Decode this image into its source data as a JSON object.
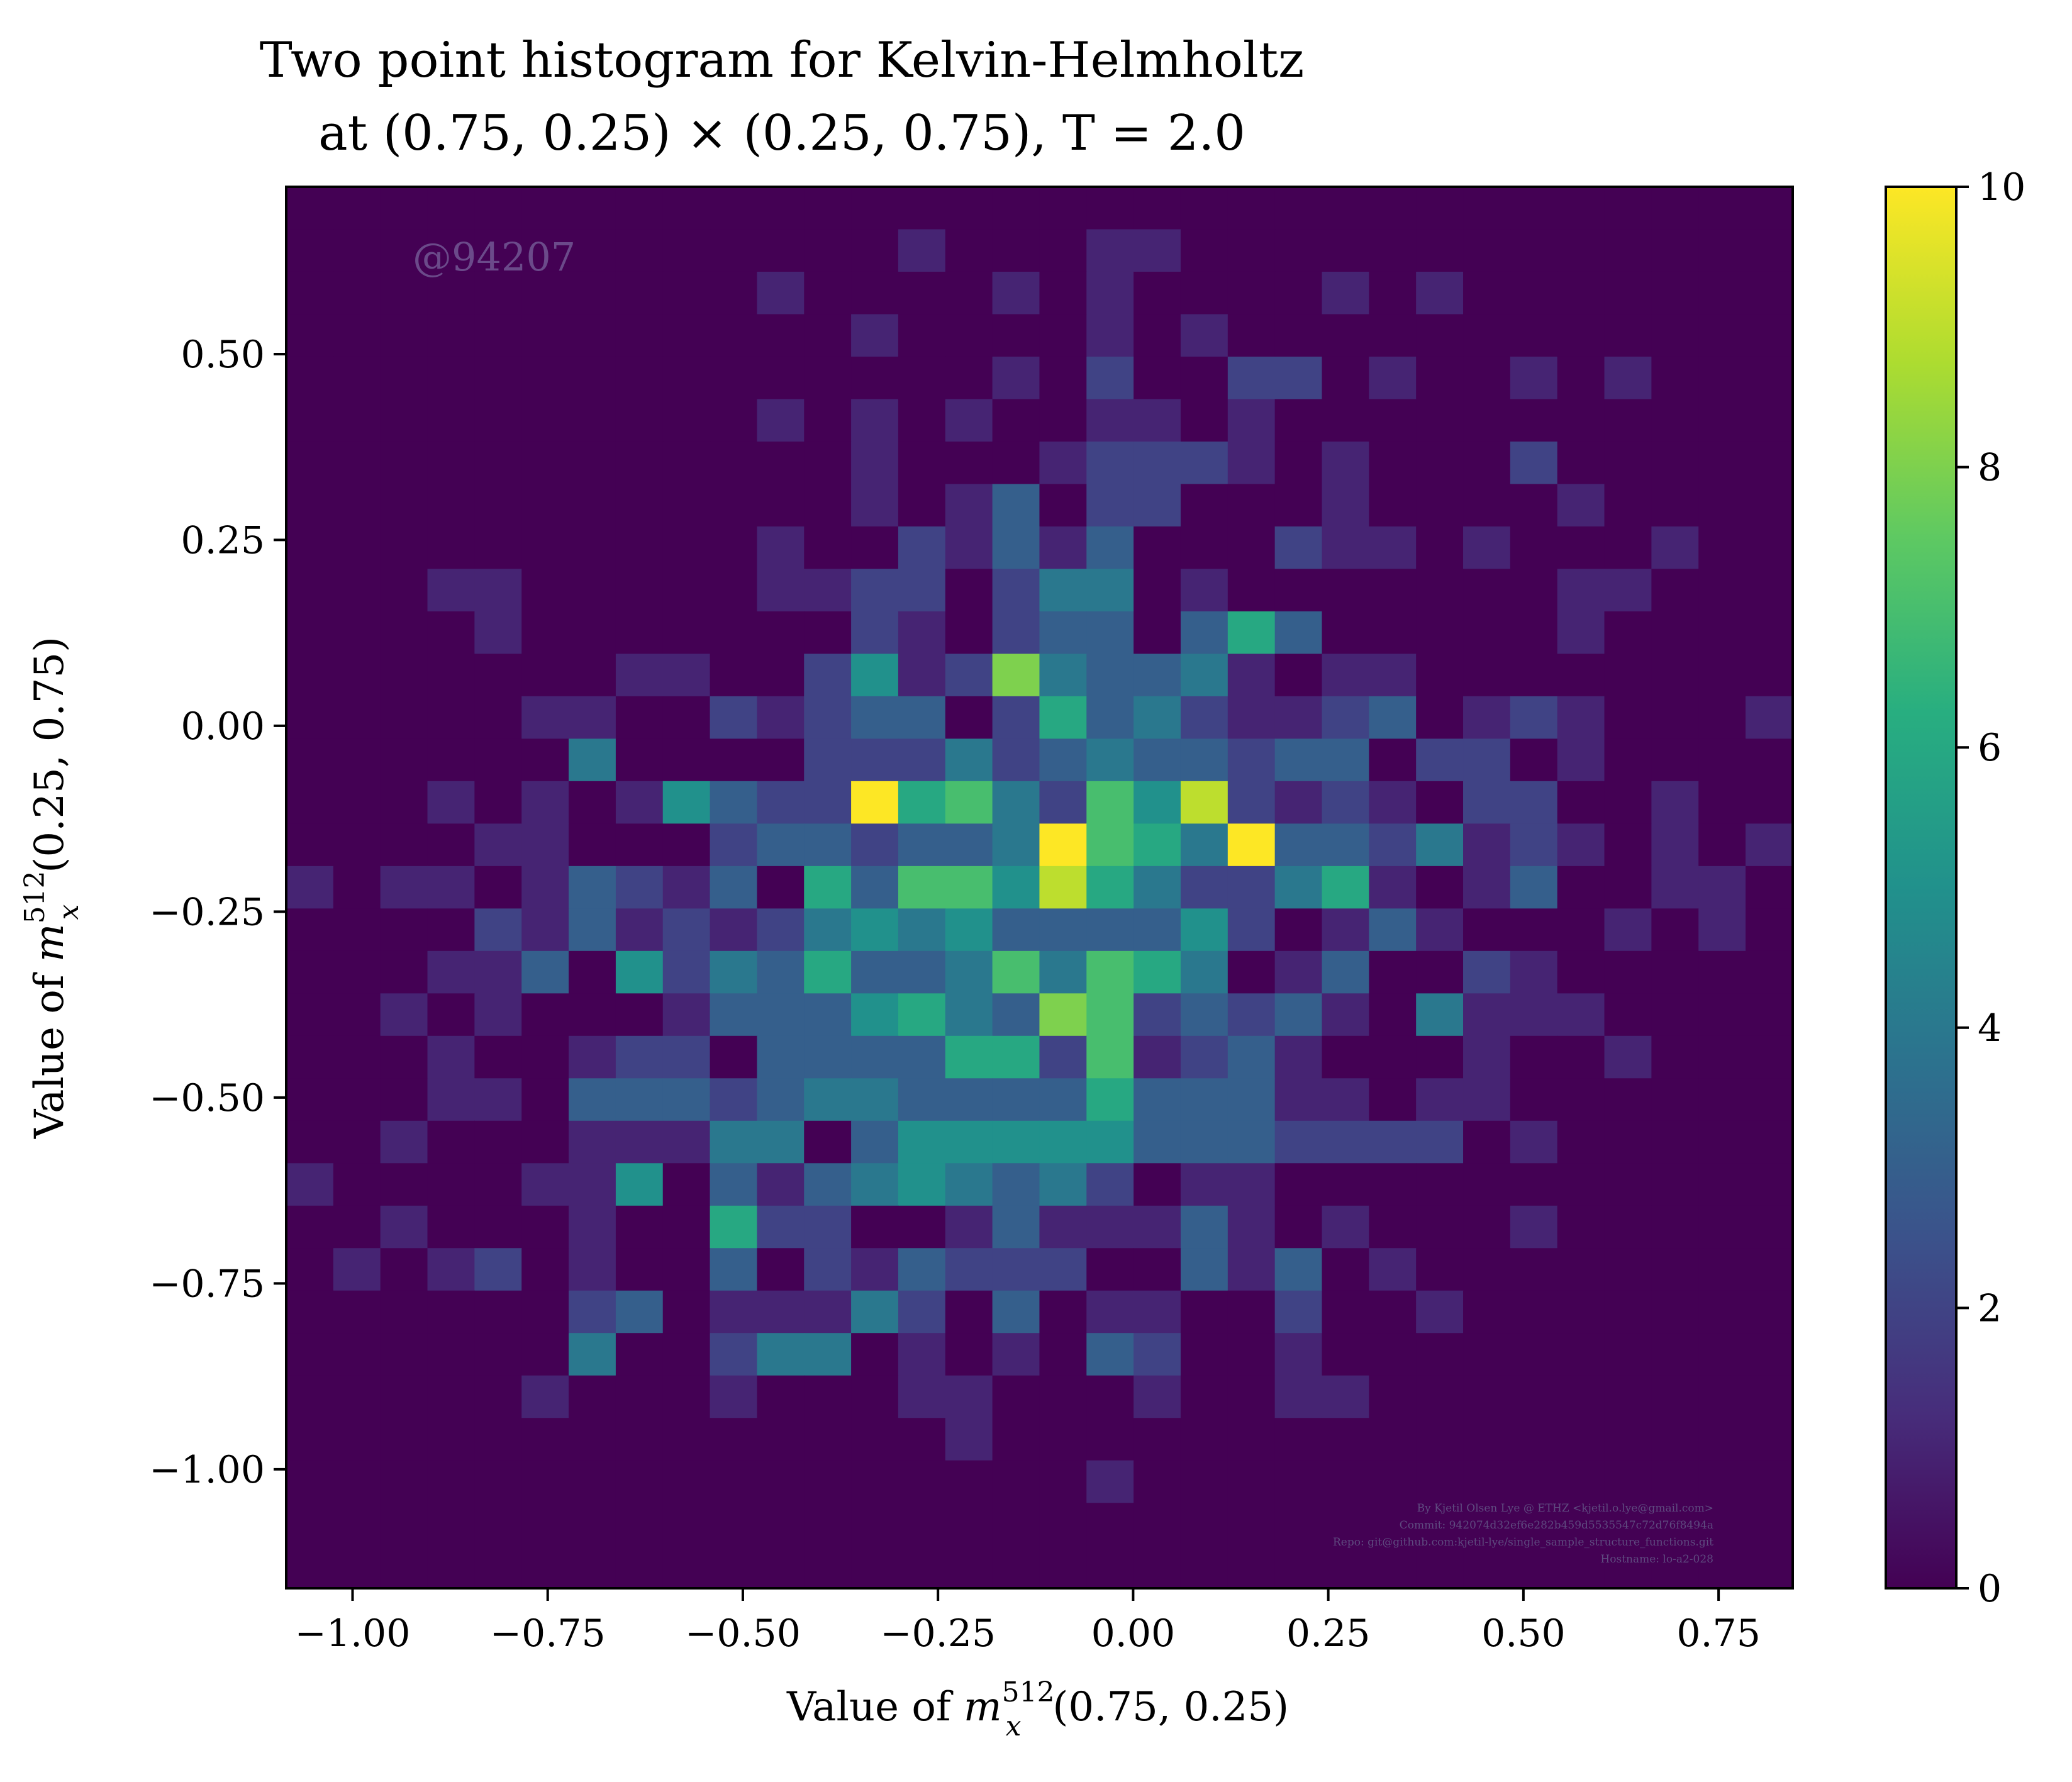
{
  "chart_data": {
    "type": "heatmap",
    "title_line1": "Two point histogram for Kelvin-Helmholtz",
    "title_line2": "at (0.75, 0.25) × (0.25, 0.75), T = 2.0",
    "xlabel": "Value of m_x^512(0.75, 0.25)",
    "ylabel": "Value of m_x^512(0.25, 0.75)",
    "xlabel_parts": {
      "pre": "Value of ",
      "var": "m",
      "sup": "512",
      "sub": "x",
      "post": "(0.75, 0.25)"
    },
    "ylabel_parts": {
      "pre": "Value of ",
      "var": "m",
      "sup": "512",
      "sub": "x",
      "post": "(0.25, 0.75)"
    },
    "xlim": [
      -1.085,
      0.845
    ],
    "ylim": [
      -1.16,
      0.725
    ],
    "x_bin_edges_start": -1.085,
    "x_bin_width": 0.06031,
    "y_bin_edges_start": -1.16,
    "y_bin_height": 0.0571,
    "nx": 32,
    "ny": 33,
    "x_ticks": [
      -1.0,
      -0.75,
      -0.5,
      -0.25,
      0.0,
      0.25,
      0.5,
      0.75
    ],
    "x_tick_labels": [
      "−1.00",
      "−0.75",
      "−0.50",
      "−0.25",
      "0.00",
      "0.25",
      "0.50",
      "0.75"
    ],
    "y_ticks": [
      0.5,
      0.25,
      0.0,
      -0.25,
      -0.5,
      -0.75,
      -1.0
    ],
    "y_tick_labels": [
      "0.50",
      "0.25",
      "0.00",
      "−0.25",
      "−0.50",
      "−0.75",
      "−1.00"
    ],
    "colorbar": {
      "colormap": "viridis",
      "range": [
        0,
        10
      ],
      "ticks": [
        0,
        2,
        4,
        6,
        8,
        10
      ],
      "tick_labels": [
        "0",
        "2",
        "4",
        "6",
        "8",
        "10"
      ]
    },
    "counts": [
      [
        0,
        0,
        0,
        0,
        0,
        0,
        0,
        0,
        0,
        0,
        0,
        0,
        0,
        0,
        0,
        0,
        0,
        0,
        0,
        0,
        0,
        0,
        0,
        0,
        0,
        0,
        0,
        0,
        0,
        0,
        0,
        0
      ],
      [
        0,
        0,
        0,
        0,
        0,
        0,
        0,
        0,
        0,
        0,
        0,
        0,
        0,
        1,
        0,
        0,
        0,
        1,
        1,
        0,
        0,
        0,
        0,
        0,
        0,
        0,
        0,
        0,
        0,
        0,
        0,
        0
      ],
      [
        0,
        0,
        0,
        0,
        0,
        0,
        0,
        0,
        0,
        0,
        1,
        0,
        0,
        0,
        0,
        1,
        0,
        1,
        0,
        0,
        0,
        0,
        1,
        0,
        1,
        0,
        0,
        0,
        0,
        0,
        0,
        0
      ],
      [
        0,
        0,
        0,
        0,
        0,
        0,
        0,
        0,
        0,
        0,
        0,
        0,
        1,
        0,
        0,
        0,
        0,
        1,
        0,
        1,
        0,
        0,
        0,
        0,
        0,
        0,
        0,
        0,
        0,
        0,
        0,
        0
      ],
      [
        0,
        0,
        0,
        0,
        0,
        0,
        0,
        0,
        0,
        0,
        0,
        0,
        0,
        0,
        0,
        1,
        0,
        2,
        0,
        0,
        2,
        2,
        0,
        1,
        0,
        0,
        1,
        0,
        1,
        0,
        0,
        0
      ],
      [
        0,
        0,
        0,
        0,
        0,
        0,
        0,
        0,
        0,
        0,
        1,
        0,
        1,
        0,
        1,
        0,
        0,
        1,
        1,
        0,
        1,
        0,
        0,
        0,
        0,
        0,
        0,
        0,
        0,
        0,
        0,
        0
      ],
      [
        0,
        0,
        0,
        0,
        0,
        0,
        0,
        0,
        0,
        0,
        0,
        0,
        1,
        0,
        0,
        0,
        1,
        2,
        2,
        2,
        1,
        0,
        1,
        0,
        0,
        0,
        2,
        0,
        0,
        0,
        0,
        0
      ],
      [
        0,
        0,
        0,
        0,
        0,
        0,
        0,
        0,
        0,
        0,
        0,
        0,
        1,
        0,
        1,
        3,
        0,
        2,
        2,
        0,
        0,
        0,
        1,
        0,
        0,
        0,
        0,
        1,
        0,
        0,
        0,
        0
      ],
      [
        0,
        0,
        0,
        0,
        0,
        0,
        0,
        0,
        0,
        0,
        1,
        0,
        0,
        2,
        1,
        3,
        1,
        3,
        0,
        0,
        0,
        2,
        1,
        1,
        0,
        1,
        0,
        0,
        0,
        1,
        0,
        0
      ],
      [
        0,
        0,
        0,
        1,
        1,
        0,
        0,
        0,
        0,
        0,
        1,
        1,
        2,
        2,
        0,
        2,
        4,
        4,
        0,
        1,
        0,
        0,
        0,
        0,
        0,
        0,
        0,
        1,
        1,
        0,
        0,
        0
      ],
      [
        0,
        0,
        0,
        0,
        1,
        0,
        0,
        0,
        0,
        0,
        0,
        0,
        2,
        1,
        0,
        2,
        3,
        3,
        0,
        3,
        6,
        3,
        0,
        0,
        0,
        0,
        0,
        1,
        0,
        0,
        0,
        0
      ],
      [
        0,
        0,
        0,
        0,
        0,
        0,
        0,
        1,
        1,
        0,
        0,
        2,
        5,
        1,
        2,
        8,
        4,
        3,
        3,
        4,
        1,
        0,
        1,
        1,
        0,
        0,
        0,
        0,
        0,
        0,
        0,
        0
      ],
      [
        0,
        0,
        0,
        0,
        0,
        1,
        1,
        0,
        0,
        2,
        1,
        2,
        3,
        3,
        0,
        2,
        6,
        3,
        4,
        2,
        1,
        1,
        2,
        3,
        0,
        1,
        2,
        1,
        0,
        0,
        0,
        1
      ],
      [
        0,
        0,
        0,
        0,
        0,
        0,
        4,
        0,
        0,
        0,
        0,
        2,
        2,
        2,
        4,
        2,
        3,
        4,
        3,
        3,
        2,
        3,
        3,
        0,
        2,
        2,
        0,
        1,
        0,
        0,
        0,
        0
      ],
      [
        0,
        0,
        0,
        1,
        0,
        1,
        0,
        1,
        5,
        3,
        2,
        2,
        10,
        6,
        7,
        4,
        2,
        7,
        5,
        9,
        2,
        1,
        2,
        1,
        0,
        2,
        2,
        0,
        0,
        1,
        0,
        0
      ],
      [
        0,
        0,
        0,
        0,
        1,
        1,
        0,
        0,
        0,
        2,
        3,
        3,
        2,
        3,
        3,
        4,
        10,
        7,
        6,
        4,
        10,
        3,
        3,
        2,
        4,
        1,
        2,
        1,
        0,
        1,
        0,
        1
      ],
      [
        1,
        0,
        1,
        1,
        0,
        1,
        3,
        2,
        1,
        3,
        0,
        6,
        3,
        7,
        7,
        5,
        9,
        6,
        4,
        2,
        2,
        4,
        6,
        1,
        0,
        1,
        3,
        0,
        0,
        1,
        1,
        0
      ],
      [
        0,
        0,
        0,
        0,
        2,
        1,
        3,
        1,
        2,
        1,
        2,
        4,
        5,
        4,
        5,
        3,
        3,
        3,
        3,
        5,
        2,
        0,
        1,
        3,
        1,
        0,
        0,
        0,
        1,
        0,
        1,
        0
      ],
      [
        0,
        0,
        0,
        1,
        1,
        3,
        0,
        5,
        2,
        4,
        3,
        6,
        3,
        3,
        4,
        7,
        4,
        7,
        6,
        4,
        0,
        1,
        3,
        0,
        0,
        2,
        1,
        0,
        0,
        0,
        0,
        0
      ],
      [
        0,
        0,
        1,
        0,
        1,
        0,
        0,
        0,
        1,
        3,
        3,
        3,
        5,
        6,
        4,
        3,
        8,
        7,
        2,
        3,
        2,
        3,
        1,
        0,
        4,
        1,
        1,
        1,
        0,
        0,
        0,
        0
      ],
      [
        0,
        0,
        0,
        1,
        0,
        0,
        1,
        2,
        2,
        0,
        3,
        3,
        3,
        3,
        6,
        6,
        2,
        7,
        1,
        2,
        3,
        1,
        0,
        0,
        0,
        1,
        0,
        0,
        1,
        0,
        0,
        0
      ],
      [
        0,
        0,
        0,
        1,
        1,
        0,
        3,
        3,
        3,
        2,
        3,
        4,
        4,
        3,
        3,
        3,
        3,
        6,
        3,
        3,
        3,
        1,
        1,
        0,
        1,
        1,
        0,
        0,
        0,
        0,
        0,
        0
      ],
      [
        0,
        0,
        1,
        0,
        0,
        0,
        1,
        1,
        1,
        4,
        4,
        0,
        3,
        5,
        5,
        5,
        5,
        5,
        3,
        3,
        3,
        2,
        2,
        2,
        2,
        0,
        1,
        0,
        0,
        0,
        0,
        0
      ],
      [
        1,
        0,
        0,
        0,
        0,
        1,
        1,
        5,
        0,
        3,
        1,
        3,
        4,
        5,
        4,
        3,
        4,
        2,
        0,
        1,
        1,
        0,
        0,
        0,
        0,
        0,
        0,
        0,
        0,
        0,
        0,
        0
      ],
      [
        0,
        0,
        1,
        0,
        0,
        0,
        1,
        0,
        0,
        6,
        2,
        2,
        0,
        0,
        1,
        3,
        1,
        1,
        1,
        3,
        1,
        0,
        1,
        0,
        0,
        0,
        1,
        0,
        0,
        0,
        0,
        0
      ],
      [
        0,
        1,
        0,
        1,
        2,
        0,
        1,
        0,
        0,
        3,
        0,
        2,
        1,
        3,
        2,
        2,
        2,
        0,
        0,
        3,
        1,
        3,
        0,
        1,
        0,
        0,
        0,
        0,
        0,
        0,
        0,
        0
      ],
      [
        0,
        0,
        0,
        0,
        0,
        0,
        2,
        3,
        0,
        1,
        1,
        1,
        4,
        2,
        0,
        3,
        0,
        1,
        1,
        0,
        0,
        2,
        0,
        0,
        1,
        0,
        0,
        0,
        0,
        0,
        0,
        0
      ],
      [
        0,
        0,
        0,
        0,
        0,
        0,
        4,
        0,
        0,
        2,
        4,
        4,
        0,
        1,
        0,
        1,
        0,
        3,
        2,
        0,
        0,
        1,
        0,
        0,
        0,
        0,
        0,
        0,
        0,
        0,
        0,
        0
      ],
      [
        0,
        0,
        0,
        0,
        0,
        1,
        0,
        0,
        0,
        1,
        0,
        0,
        0,
        1,
        1,
        0,
        0,
        0,
        1,
        0,
        0,
        1,
        1,
        0,
        0,
        0,
        0,
        0,
        0,
        0,
        0,
        0
      ],
      [
        0,
        0,
        0,
        0,
        0,
        0,
        0,
        0,
        0,
        0,
        0,
        0,
        0,
        0,
        1,
        0,
        0,
        0,
        0,
        0,
        0,
        0,
        0,
        0,
        0,
        0,
        0,
        0,
        0,
        0,
        0,
        0
      ],
      [
        0,
        0,
        0,
        0,
        0,
        0,
        0,
        0,
        0,
        0,
        0,
        0,
        0,
        0,
        0,
        0,
        0,
        1,
        0,
        0,
        0,
        0,
        0,
        0,
        0,
        0,
        0,
        0,
        0,
        0,
        0,
        0
      ],
      [
        0,
        0,
        0,
        0,
        0,
        0,
        0,
        0,
        0,
        0,
        0,
        0,
        0,
        0,
        0,
        0,
        0,
        0,
        0,
        0,
        0,
        0,
        0,
        0,
        0,
        0,
        0,
        0,
        0,
        0,
        0,
        0
      ],
      [
        0,
        0,
        0,
        0,
        0,
        0,
        0,
        0,
        0,
        0,
        0,
        0,
        0,
        0,
        0,
        0,
        0,
        0,
        0,
        0,
        0,
        0,
        0,
        0,
        0,
        0,
        0,
        0,
        0,
        0,
        0,
        0
      ]
    ],
    "watermark": "@94207",
    "credits": [
      "By Kjetil Olsen Lye @ ETHZ <kjetil.o.lye@gmail.com>",
      "Commit: 942074d32ef6e282b459d5535547c72d76f8494a",
      "Repo: git@github.com:kjetil-lye/single_sample_structure_functions.git",
      "Hostname: lo-a2-028"
    ]
  }
}
